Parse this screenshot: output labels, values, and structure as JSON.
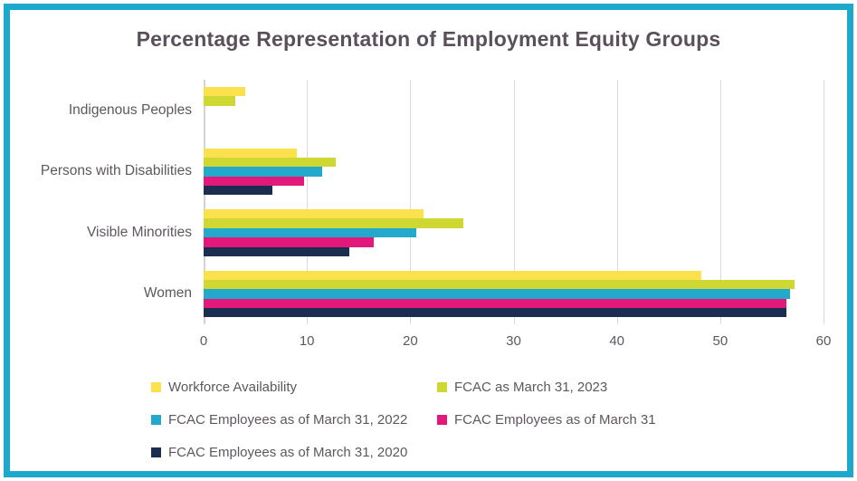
{
  "title": "Percentage Representation of Employment Equity Groups",
  "frame": {
    "border_color": "#1CA9CC"
  },
  "colors": {
    "text": "#5E575E",
    "gridline": "#DBD9DB",
    "axis_line": "#D5D2D5"
  },
  "chart_data": {
    "type": "bar",
    "orientation": "horizontal",
    "title": "Percentage Representation of Employment Equity Groups",
    "categories": [
      "Indigenous Peoples",
      "Persons with Disabilities",
      "Visible Minorities",
      "Women"
    ],
    "series": [
      {
        "name": "Workforce Availability",
        "color": "#FCE14F",
        "values": [
          4.0,
          9.0,
          21.3,
          48.2
        ]
      },
      {
        "name": "FCAC as March 31, 2023",
        "color": "#CFD733",
        "values": [
          3.1,
          12.8,
          25.1,
          57.2
        ]
      },
      {
        "name": "FCAC Employees as of March 31, 2022",
        "color": "#22A9CC",
        "values": [
          0,
          11.5,
          20.6,
          56.8
        ]
      },
      {
        "name": "FCAC Employees as of March 31",
        "color": "#E2197B",
        "values": [
          0,
          9.7,
          16.5,
          56.4
        ]
      },
      {
        "name": "FCAC Employees as of March 31, 2020",
        "color": "#1C2D52",
        "values": [
          0,
          6.7,
          14.1,
          56.4
        ]
      }
    ],
    "xlabel": "",
    "ylabel": "",
    "xlim": [
      0,
      60
    ],
    "x_ticks": [
      0,
      10,
      20,
      30,
      40,
      50,
      60
    ],
    "grid": true,
    "legend_position": "bottom",
    "legend_rows": [
      [
        0,
        1
      ],
      [
        2,
        3
      ],
      [
        4
      ]
    ]
  }
}
